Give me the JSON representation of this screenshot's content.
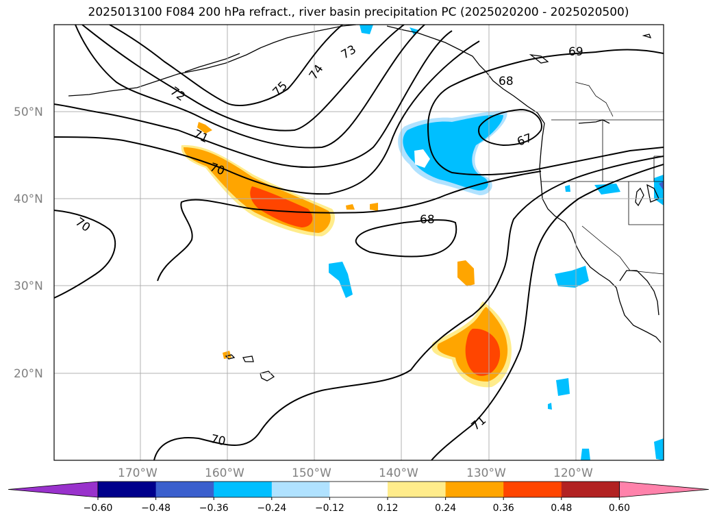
{
  "title": "2025013100 F084 200 hPa refract., river basin precipitation PC (2025020200 - 2025020500)",
  "map": {
    "lon_labels": [
      "170°W",
      "160°W",
      "150°W",
      "140°W",
      "130°W",
      "120°W"
    ],
    "lat_labels": [
      "50°N",
      "40°N",
      "30°N",
      "20°N"
    ],
    "contour_labels": [
      "75",
      "74",
      "73",
      "72",
      "71",
      "70",
      "70",
      "70",
      "69",
      "68",
      "68",
      "67",
      "71"
    ]
  },
  "colorbar": {
    "ticks": [
      "−0.60",
      "−0.48",
      "−0.36",
      "−0.24",
      "−0.12",
      "0.12",
      "0.24",
      "0.36",
      "0.48",
      "0.60"
    ],
    "colors": [
      "#9932cc",
      "#00008b",
      "#3a5fcd",
      "#00bfff",
      "#b0e2ff",
      "#ffffff",
      "#ffec8b",
      "#ffa500",
      "#ff4500",
      "#b22222",
      "#ff82ab"
    ]
  }
}
